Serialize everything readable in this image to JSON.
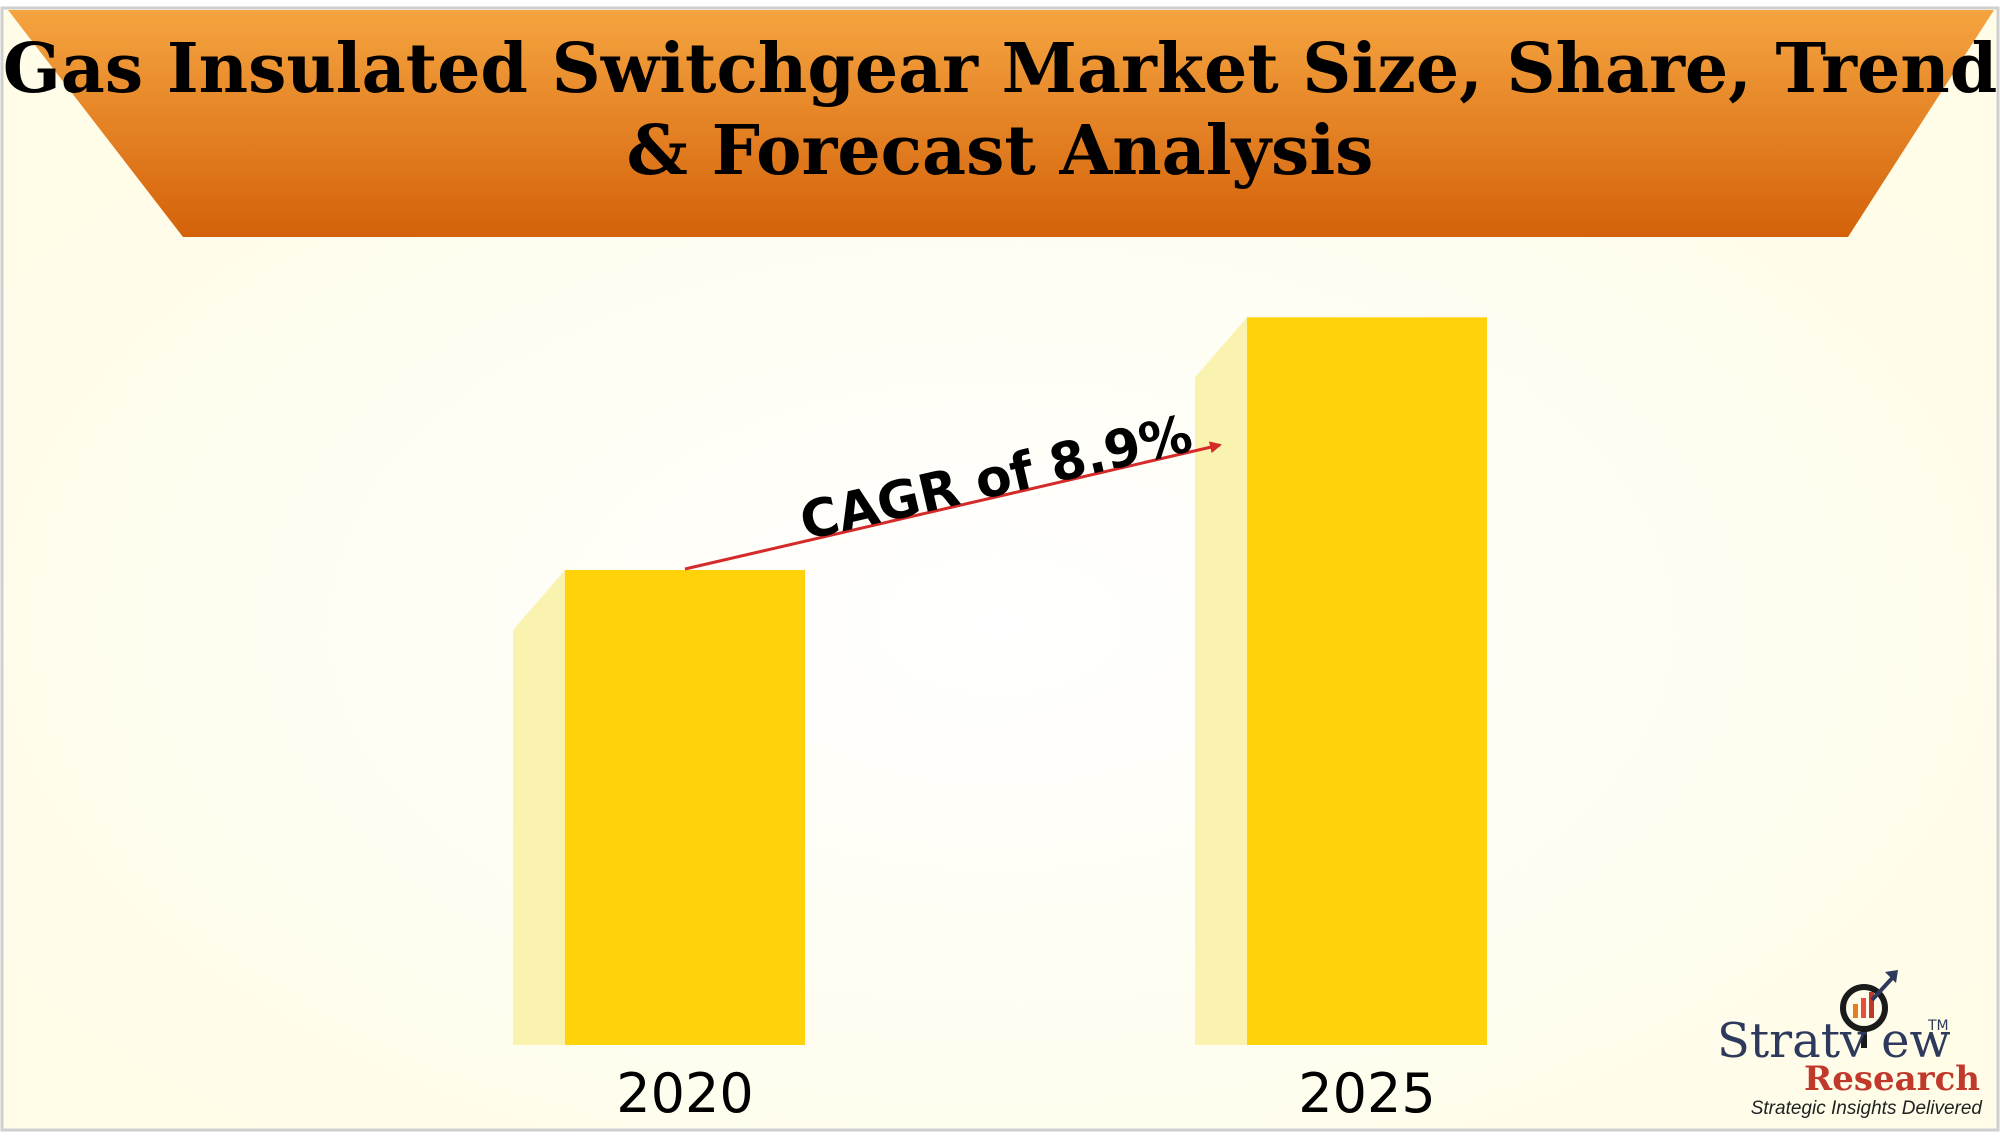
{
  "title_lines": [
    "Gas Insulated Switchgear Market Size, Share, Trend",
    "& Forecast Analysis"
  ],
  "annotation": "CAGR of 8.9%",
  "logo": {
    "name_prefix": "Stratv",
    "name_suffix": "ew",
    "research": "Research",
    "tagline": "Strategic Insights Delivered",
    "tm": "TM"
  },
  "colors": {
    "bar_front": "#FFD20A",
    "bar_side": "#FAF3B0",
    "banner_top": "#F5A440",
    "banner_bottom": "#D4620A",
    "arrow": "#D42A2A",
    "background": "#FFFDF0"
  },
  "chart_data": {
    "type": "bar",
    "categories": [
      "2020",
      "2025"
    ],
    "values": [
      1,
      1.532
    ],
    "annotation": "CAGR of 8.9%",
    "title": "Gas Insulated Switchgear Market Size, Share, Trend & Forecast Analysis",
    "xlabel": "",
    "ylabel": "",
    "grid": false
  }
}
